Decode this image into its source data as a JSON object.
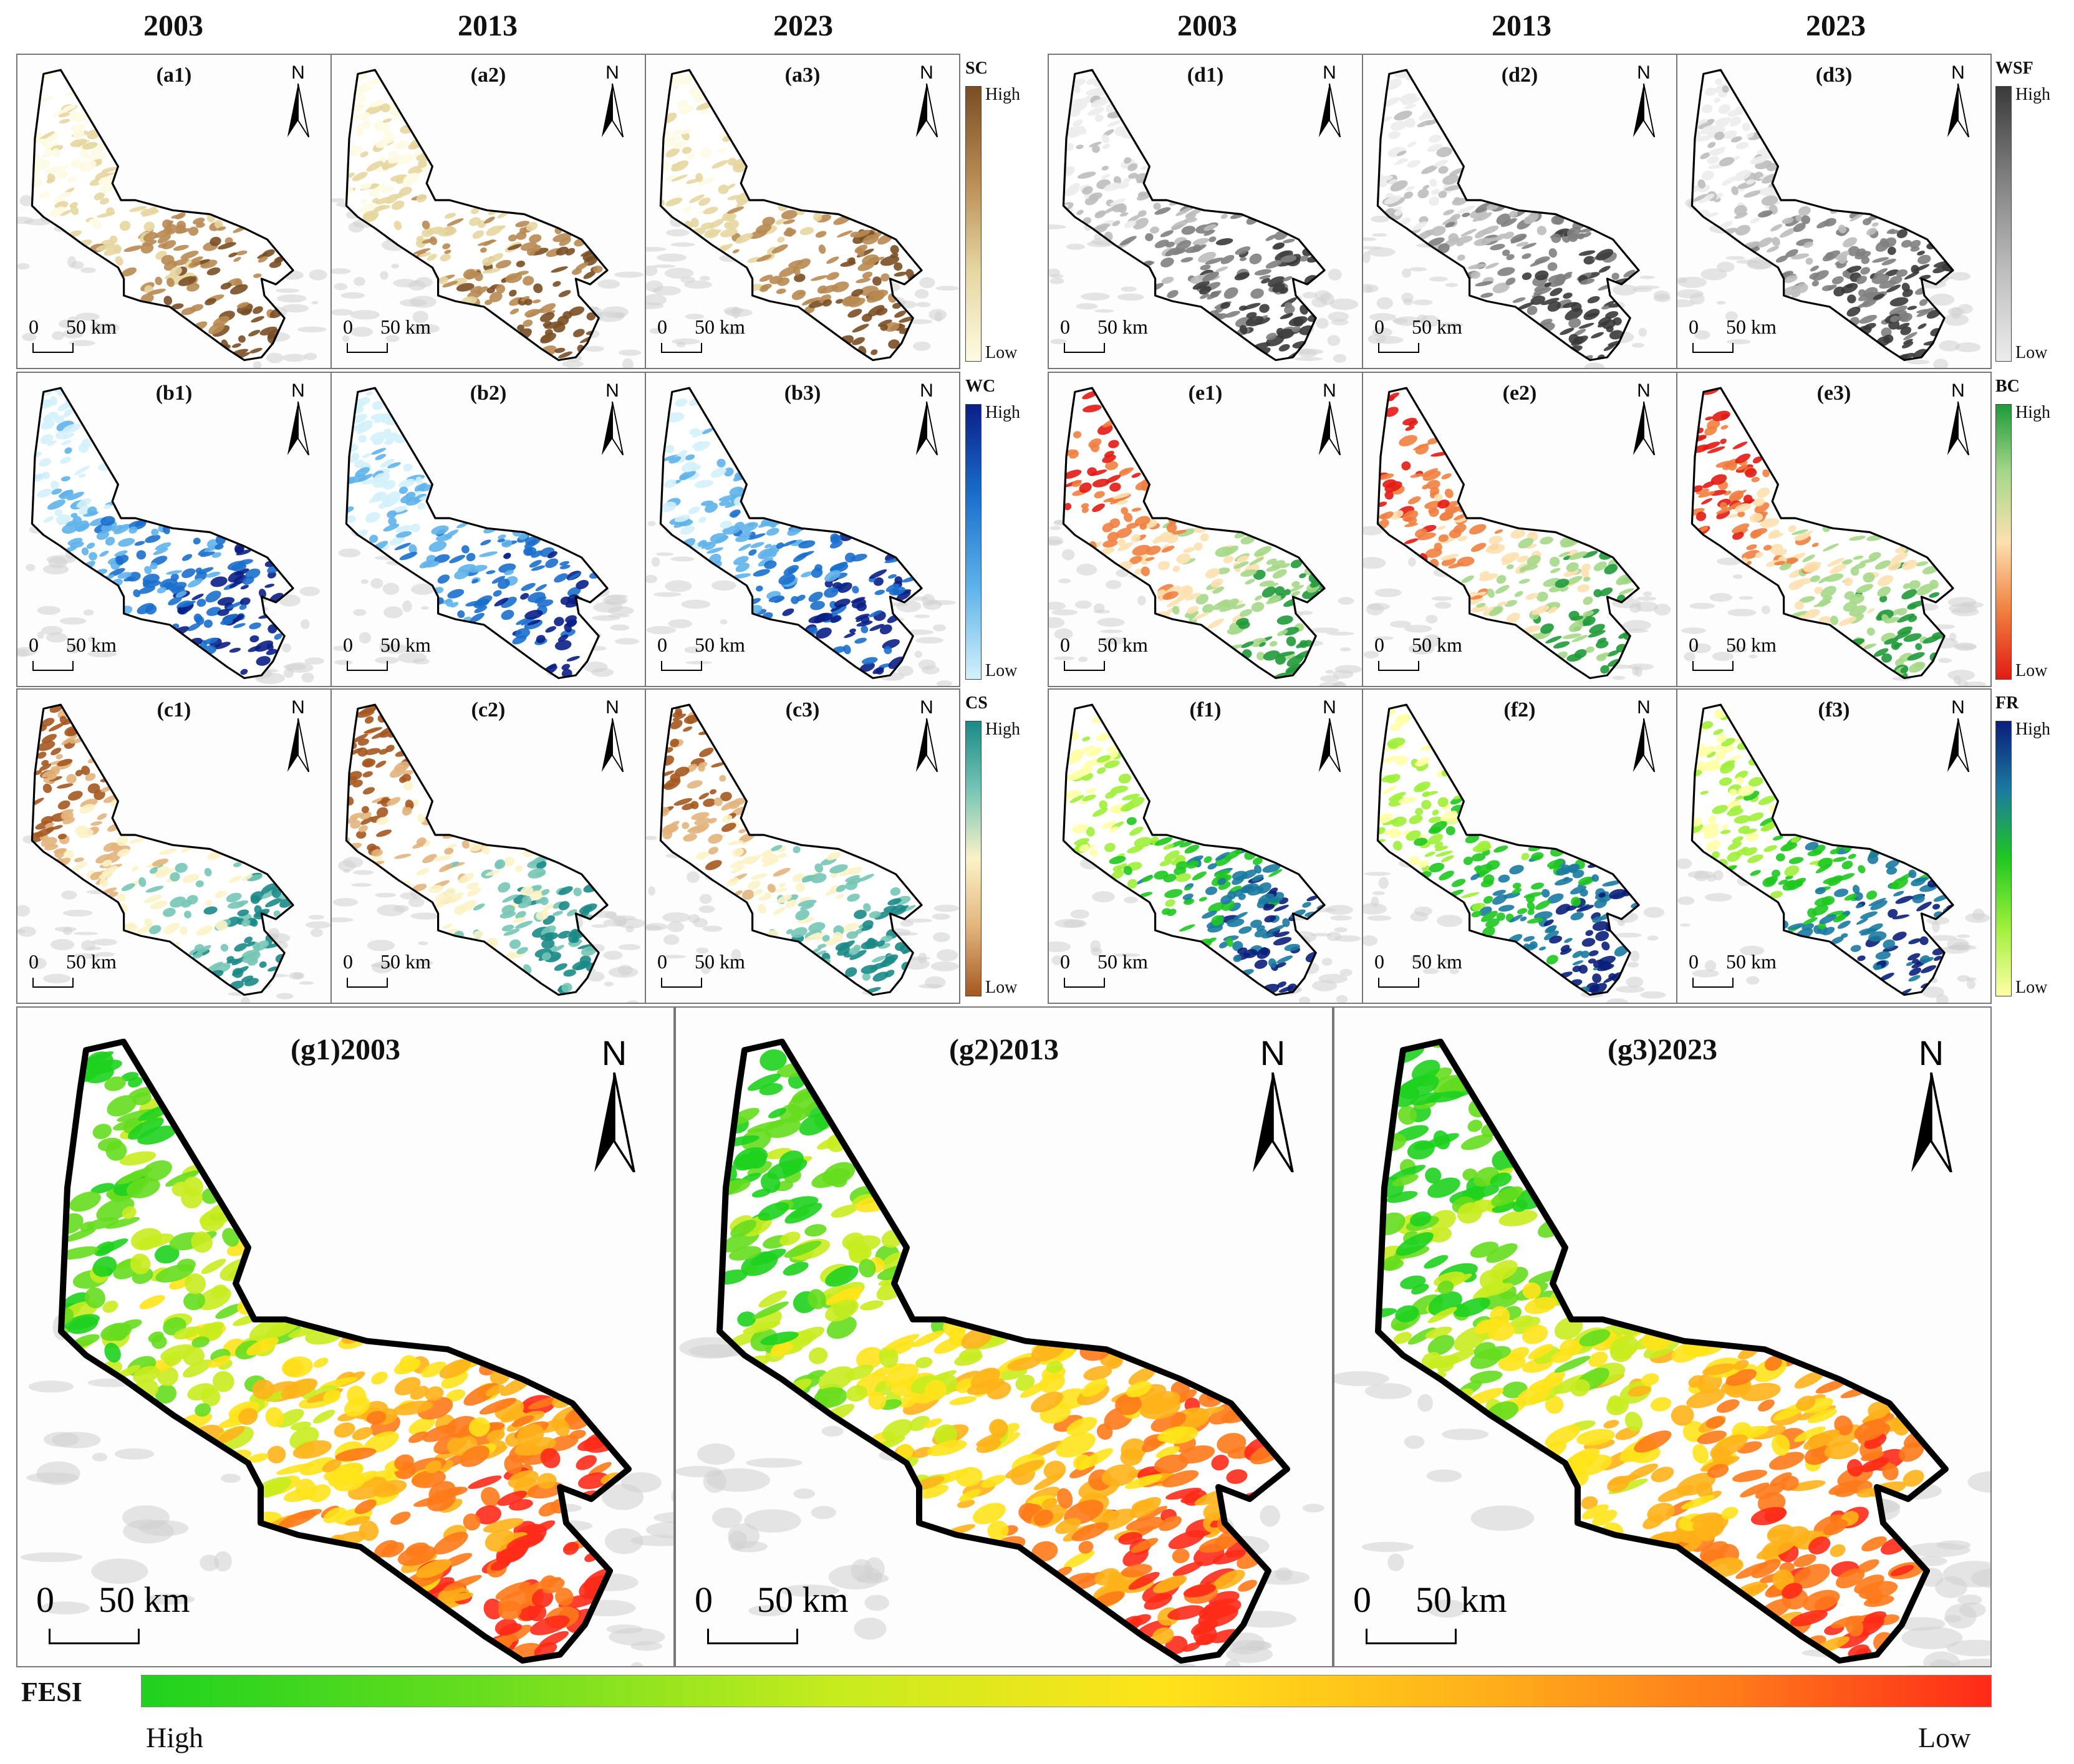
{
  "years_left": [
    "2003",
    "2013",
    "2023"
  ],
  "years_right": [
    "2003",
    "2013",
    "2023"
  ],
  "rows": [
    {
      "left": {
        "key": "SC",
        "labels": [
          "(a1)",
          "(a2)",
          "(a3)"
        ],
        "colors": [
          "#fdfbe2",
          "#e6d6a0",
          "#b88a52",
          "#7a4e23"
        ]
      },
      "right": {
        "key": "WSF",
        "labels": [
          "(d1)",
          "(d2)",
          "(d3)"
        ],
        "colors": [
          "#ececec",
          "#bdbdbd",
          "#7f7f7f",
          "#3a3a3a"
        ]
      }
    },
    {
      "left": {
        "key": "WC",
        "labels": [
          "(b1)",
          "(b2)",
          "(b3)"
        ],
        "colors": [
          "#d3f1fb",
          "#5fb3ea",
          "#1a6fcc",
          "#0a1f86"
        ]
      },
      "right": {
        "key": "BC",
        "labels": [
          "(e1)",
          "(e2)",
          "(e3)"
        ],
        "colors": [
          "#e21b13",
          "#f08040",
          "#fde0b0",
          "#a6d88a",
          "#1f9a3a"
        ]
      }
    },
    {
      "left": {
        "key": "CS",
        "labels": [
          "(c1)",
          "(c2)",
          "(c3)"
        ],
        "colors": [
          "#a5581f",
          "#e2b47c",
          "#fbf3c6",
          "#76c5b5",
          "#1b8a87"
        ]
      },
      "right": {
        "key": "FR",
        "labels": [
          "(f1)",
          "(f2)",
          "(f3)"
        ],
        "colors": [
          "#ffffa6",
          "#9ef03a",
          "#1fc81f",
          "#1b7aa0",
          "#0a1f7a"
        ]
      }
    }
  ],
  "legend_high": "High",
  "legend_low": "Low",
  "north_letter": "N",
  "scale_zero": "0",
  "scale_distance": "50 km",
  "bottom_panels": [
    {
      "label": "(g1)2003"
    },
    {
      "label": "(g2)2013"
    },
    {
      "label": "(g3)2023"
    }
  ],
  "fesi": {
    "title": "FESI",
    "high": "High",
    "low": "Low"
  }
}
